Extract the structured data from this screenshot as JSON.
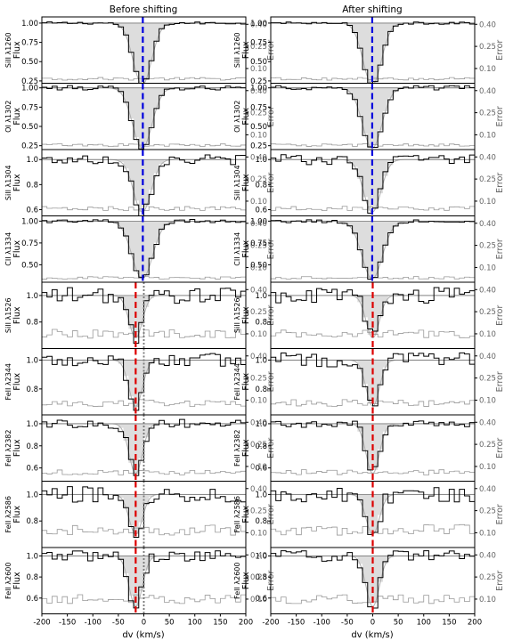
{
  "chart_data": [
    {
      "type": "line",
      "title": "Before shifting",
      "xlabel": "dv (km/s)",
      "ylabel": "Flux",
      "y2label": "Error",
      "xlim": [
        -200,
        200
      ],
      "x_ticks": [
        -200,
        -150,
        -100,
        -50,
        0,
        50,
        100,
        150,
        200
      ],
      "error_ticks": [
        "0.40",
        "0.25",
        "0.10"
      ],
      "grid": false,
      "series_style": {
        "flux": "#000000",
        "model": "#b0b0b0",
        "fill": "#dddddd",
        "error": "#999999",
        "zero_line": "#777777"
      },
      "panels": [
        {
          "ion": "SiII λ1260",
          "ylim": [
            0.22,
            1.08
          ],
          "yticks": [
            "1.00",
            "0.75",
            "0.50",
            "0.25"
          ],
          "yvals": [
            1.0,
            0.75,
            0.5,
            0.25
          ],
          "line_color": "#0000dd",
          "line_v": -2,
          "center": -3,
          "depth": 0.8,
          "width": 18,
          "noise": 0.015,
          "err": 0.03,
          "ref_dotted": false
        },
        {
          "ion": "OI λ1302",
          "ylim": [
            0.2,
            1.06
          ],
          "yticks": [
            "1.00",
            "0.75",
            "0.50",
            "0.25"
          ],
          "yvals": [
            1.0,
            0.75,
            0.5,
            0.25
          ],
          "line_color": "#0000dd",
          "line_v": -2,
          "center": -3,
          "depth": 0.78,
          "width": 19,
          "noise": 0.03,
          "err": 0.03,
          "ref_dotted": false
        },
        {
          "ion": "SiII λ1304",
          "ylim": [
            0.55,
            1.08
          ],
          "yticks": [
            "1.0",
            "0.8",
            "0.6"
          ],
          "yvals": [
            1.0,
            0.8,
            0.6
          ],
          "line_color": "#0000dd",
          "line_v": -2,
          "center": -3,
          "depth": 0.42,
          "width": 17,
          "noise": 0.04,
          "err": 0.05,
          "ref_dotted": false
        },
        {
          "ion": "CII λ1334",
          "ylim": [
            0.3,
            1.06
          ],
          "yticks": [
            "1.00",
            "0.75",
            "0.50"
          ],
          "yvals": [
            1.0,
            0.75,
            0.5
          ],
          "line_color": "#0000dd",
          "line_v": -2,
          "center": -3,
          "depth": 0.66,
          "width": 20,
          "noise": 0.02,
          "err": 0.03,
          "ref_dotted": false
        },
        {
          "ion": "SiII λ1526",
          "ylim": [
            0.6,
            1.1
          ],
          "yticks": [
            "1.0",
            "0.8"
          ],
          "yvals": [
            1.0,
            0.8
          ],
          "line_color": "#dd0000",
          "line_v": -16,
          "center": -16,
          "depth": 0.32,
          "width": 13,
          "noise": 0.06,
          "err": 0.1,
          "ref_dotted": true
        },
        {
          "ion": "FeII λ2344",
          "ylim": [
            0.62,
            1.08
          ],
          "yticks": [
            "1.0",
            "0.8"
          ],
          "yvals": [
            1.0,
            0.8
          ],
          "line_color": "#dd0000",
          "line_v": -16,
          "center": -16,
          "depth": 0.32,
          "width": 13,
          "noise": 0.05,
          "err": 0.08,
          "ref_dotted": true
        },
        {
          "ion": "FeII λ2382",
          "ylim": [
            0.48,
            1.08
          ],
          "yticks": [
            "1.0",
            "0.8",
            "0.6"
          ],
          "yvals": [
            1.0,
            0.8,
            0.6
          ],
          "line_color": "#dd0000",
          "line_v": -16,
          "center": -16,
          "depth": 0.45,
          "width": 13,
          "noise": 0.04,
          "err": 0.06,
          "ref_dotted": true
        },
        {
          "ion": "FeII λ2586",
          "ylim": [
            0.6,
            1.1
          ],
          "yticks": [
            "1.0",
            "0.8"
          ],
          "yvals": [
            1.0,
            0.8
          ],
          "line_color": "#dd0000",
          "line_v": -16,
          "center": -16,
          "depth": 0.3,
          "width": 13,
          "noise": 0.06,
          "err": 0.12,
          "ref_dotted": true
        },
        {
          "ion": "FeII λ2600",
          "ylim": [
            0.45,
            1.08
          ],
          "yticks": [
            "1.0",
            "0.8",
            "0.6"
          ],
          "yvals": [
            1.0,
            0.8,
            0.6
          ],
          "line_color": "#dd0000",
          "line_v": -16,
          "center": -16,
          "depth": 0.48,
          "width": 13,
          "noise": 0.05,
          "err": 0.1,
          "ref_dotted": true
        }
      ]
    },
    {
      "type": "line",
      "title": "After shifting",
      "xlabel": "dv (km/s)",
      "ylabel": "Flux",
      "y2label": "Error",
      "xlim": [
        -200,
        200
      ],
      "x_ticks": [
        -200,
        -150,
        -100,
        -50,
        0,
        50,
        100,
        150,
        200
      ],
      "error_ticks": [
        "0.40",
        "0.25",
        "0.10"
      ],
      "grid": false,
      "series_style": {
        "flux": "#000000",
        "model": "#b0b0b0",
        "fill": "#dddddd",
        "error": "#999999",
        "zero_line": "#777777"
      },
      "panels": [
        {
          "ion": "SiII λ1260",
          "ylim": [
            0.22,
            1.08
          ],
          "yticks": [
            "1.00",
            "0.75",
            "0.50",
            "0.25"
          ],
          "yvals": [
            1.0,
            0.75,
            0.5,
            0.25
          ],
          "line_color": "#0000dd",
          "line_v": -1,
          "center": -1,
          "depth": 0.8,
          "width": 18,
          "noise": 0.015,
          "err": 0.03,
          "ref_dotted": false
        },
        {
          "ion": "OI λ1302",
          "ylim": [
            0.2,
            1.06
          ],
          "yticks": [
            "1.00",
            "0.75",
            "0.50",
            "0.25"
          ],
          "yvals": [
            1.0,
            0.75,
            0.5,
            0.25
          ],
          "line_color": "#0000dd",
          "line_v": -1,
          "center": -1,
          "depth": 0.78,
          "width": 19,
          "noise": 0.03,
          "err": 0.03,
          "ref_dotted": false
        },
        {
          "ion": "SiII λ1304",
          "ylim": [
            0.55,
            1.08
          ],
          "yticks": [
            "1.0",
            "0.8",
            "0.6"
          ],
          "yvals": [
            1.0,
            0.8,
            0.6
          ],
          "line_color": "#0000dd",
          "line_v": -1,
          "center": -1,
          "depth": 0.42,
          "width": 17,
          "noise": 0.04,
          "err": 0.05,
          "ref_dotted": false
        },
        {
          "ion": "CII λ1334",
          "ylim": [
            0.3,
            1.06
          ],
          "yticks": [
            "1.00",
            "0.75",
            "0.50"
          ],
          "yvals": [
            1.0,
            0.75,
            0.5
          ],
          "line_color": "#0000dd",
          "line_v": -1,
          "center": -1,
          "depth": 0.66,
          "width": 20,
          "noise": 0.02,
          "err": 0.03,
          "ref_dotted": false
        },
        {
          "ion": "SiII λ1526",
          "ylim": [
            0.6,
            1.1
          ],
          "yticks": [
            "1.0",
            "0.8"
          ],
          "yvals": [
            1.0,
            0.8
          ],
          "line_color": "#dd0000",
          "line_v": 0,
          "center": 0,
          "depth": 0.32,
          "width": 13,
          "noise": 0.06,
          "err": 0.1,
          "ref_dotted": false
        },
        {
          "ion": "FeII λ2344",
          "ylim": [
            0.62,
            1.08
          ],
          "yticks": [
            "1.0",
            "0.8"
          ],
          "yvals": [
            1.0,
            0.8
          ],
          "line_color": "#dd0000",
          "line_v": 0,
          "center": 0,
          "depth": 0.32,
          "width": 13,
          "noise": 0.05,
          "err": 0.08,
          "ref_dotted": false
        },
        {
          "ion": "FeII λ2382",
          "ylim": [
            0.48,
            1.08
          ],
          "yticks": [
            "1.0",
            "0.8",
            "0.6"
          ],
          "yvals": [
            1.0,
            0.8,
            0.6
          ],
          "line_color": "#dd0000",
          "line_v": 0,
          "center": 0,
          "depth": 0.45,
          "width": 13,
          "noise": 0.04,
          "err": 0.06,
          "ref_dotted": false
        },
        {
          "ion": "FeII λ2586",
          "ylim": [
            0.6,
            1.1
          ],
          "yticks": [
            "1.0",
            "0.8"
          ],
          "yvals": [
            1.0,
            0.8
          ],
          "line_color": "#dd0000",
          "line_v": 0,
          "center": 0,
          "depth": 0.3,
          "width": 13,
          "noise": 0.06,
          "err": 0.12,
          "ref_dotted": false
        },
        {
          "ion": "FeII λ2600",
          "ylim": [
            0.45,
            1.08
          ],
          "yticks": [
            "1.0",
            "0.8",
            "0.6"
          ],
          "yvals": [
            1.0,
            0.8,
            0.6
          ],
          "line_color": "#dd0000",
          "line_v": 0,
          "center": 0,
          "depth": 0.48,
          "width": 13,
          "noise": 0.05,
          "err": 0.1,
          "ref_dotted": false
        }
      ]
    }
  ]
}
